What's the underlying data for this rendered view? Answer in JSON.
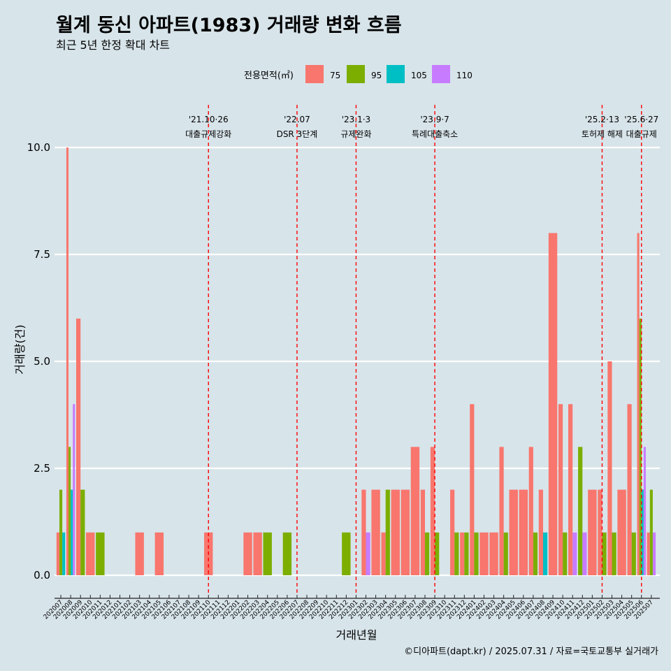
{
  "chart_data": {
    "type": "bar",
    "title": "월계 동신 아파트(1983) 거래량 변화 흐름",
    "subtitle": "최근 5년 한정 확대 차트",
    "xlabel": "거래년월",
    "ylabel": "거래량(건)",
    "ylim": [
      0,
      10
    ],
    "yticks": [
      "0.0",
      "2.5",
      "5.0",
      "7.5",
      "10.0"
    ],
    "legend_title": "전용면적(㎡)",
    "legend_position": "top",
    "grid": "horizontal",
    "caption": "©디아파트(dapt.kr) / 2025.07.31 / 자료=국토교통부 실거래가",
    "categories": [
      "202007",
      "202008",
      "202009",
      "202010",
      "202011",
      "202012",
      "202101",
      "202102",
      "202103",
      "202104",
      "202105",
      "202106",
      "202107",
      "202108",
      "202109",
      "202110",
      "202111",
      "202112",
      "202201",
      "202202",
      "202203",
      "202204",
      "202205",
      "202206",
      "202207",
      "202208",
      "202209",
      "202210",
      "202211",
      "202212",
      "202301",
      "202302",
      "202303",
      "202304",
      "202305",
      "202306",
      "202307",
      "202308",
      "202309",
      "202310",
      "202311",
      "202312",
      "202401",
      "202402",
      "202403",
      "202404",
      "202405",
      "202406",
      "202407",
      "202408",
      "202409",
      "202410",
      "202411",
      "202412",
      "202501",
      "202502",
      "202503",
      "202504",
      "202505",
      "202506",
      "202507"
    ],
    "series": [
      {
        "name": "75",
        "color": "#f8766d",
        "values": [
          1,
          10,
          6,
          1,
          0,
          0,
          0,
          0,
          1,
          0,
          1,
          0,
          0,
          0,
          0,
          1,
          0,
          0,
          0,
          1,
          1,
          0,
          0,
          0,
          0,
          0,
          0,
          0,
          0,
          0,
          0,
          2,
          2,
          1,
          2,
          2,
          3,
          2,
          3,
          0,
          2,
          1,
          4,
          1,
          1,
          3,
          2,
          2,
          3,
          2,
          8,
          4,
          4,
          0,
          2,
          2,
          5,
          2,
          4,
          8,
          1
        ]
      },
      {
        "name": "95",
        "color": "#7cae00",
        "values": [
          2,
          3,
          2,
          0,
          1,
          0,
          0,
          0,
          0,
          0,
          0,
          0,
          0,
          0,
          0,
          0,
          0,
          0,
          0,
          0,
          0,
          1,
          0,
          1,
          0,
          0,
          0,
          0,
          0,
          1,
          0,
          0,
          0,
          2,
          0,
          0,
          0,
          1,
          1,
          0,
          1,
          1,
          1,
          0,
          0,
          1,
          0,
          0,
          1,
          0,
          0,
          1,
          0,
          3,
          0,
          1,
          1,
          0,
          1,
          6,
          2
        ]
      },
      {
        "name": "105",
        "color": "#00bfc4",
        "values": [
          1,
          2,
          0,
          0,
          0,
          0,
          0,
          0,
          0,
          0,
          0,
          0,
          0,
          0,
          0,
          0,
          0,
          0,
          0,
          0,
          0,
          0,
          0,
          0,
          0,
          0,
          0,
          0,
          0,
          0,
          0,
          0,
          0,
          0,
          0,
          0,
          0,
          0,
          0,
          0,
          0,
          0,
          0,
          0,
          0,
          0,
          0,
          0,
          0,
          1,
          0,
          0,
          0,
          0,
          0,
          0,
          0,
          0,
          0,
          2,
          0
        ]
      },
      {
        "name": "110",
        "color": "#c77cff",
        "values": [
          0,
          4,
          0,
          0,
          0,
          0,
          0,
          0,
          0,
          0,
          0,
          0,
          0,
          0,
          0,
          0,
          0,
          0,
          0,
          0,
          0,
          0,
          0,
          0,
          0,
          0,
          0,
          0,
          0,
          0,
          0,
          1,
          0,
          0,
          0,
          0,
          0,
          0,
          0,
          0,
          0,
          0,
          0,
          0,
          0,
          0,
          0,
          0,
          0,
          0,
          0,
          0,
          1,
          1,
          0,
          0,
          0,
          0,
          0,
          3,
          1
        ]
      }
    ],
    "annotations": [
      {
        "month": "202110",
        "date": "'21.10·26",
        "label": "대출규제강화"
      },
      {
        "month": "202207",
        "date": "'22.07",
        "label": "DSR 3단계"
      },
      {
        "month": "202301",
        "date": "'23.1·3",
        "label": "규제완화"
      },
      {
        "month": "202309",
        "date": "'23.9·7",
        "label": "특례대출축소"
      },
      {
        "month": "202502",
        "date": "'25.2·13",
        "label": "토허제 해제"
      },
      {
        "month": "202506",
        "date": "'25.6·27",
        "label": "대출규제"
      }
    ]
  }
}
